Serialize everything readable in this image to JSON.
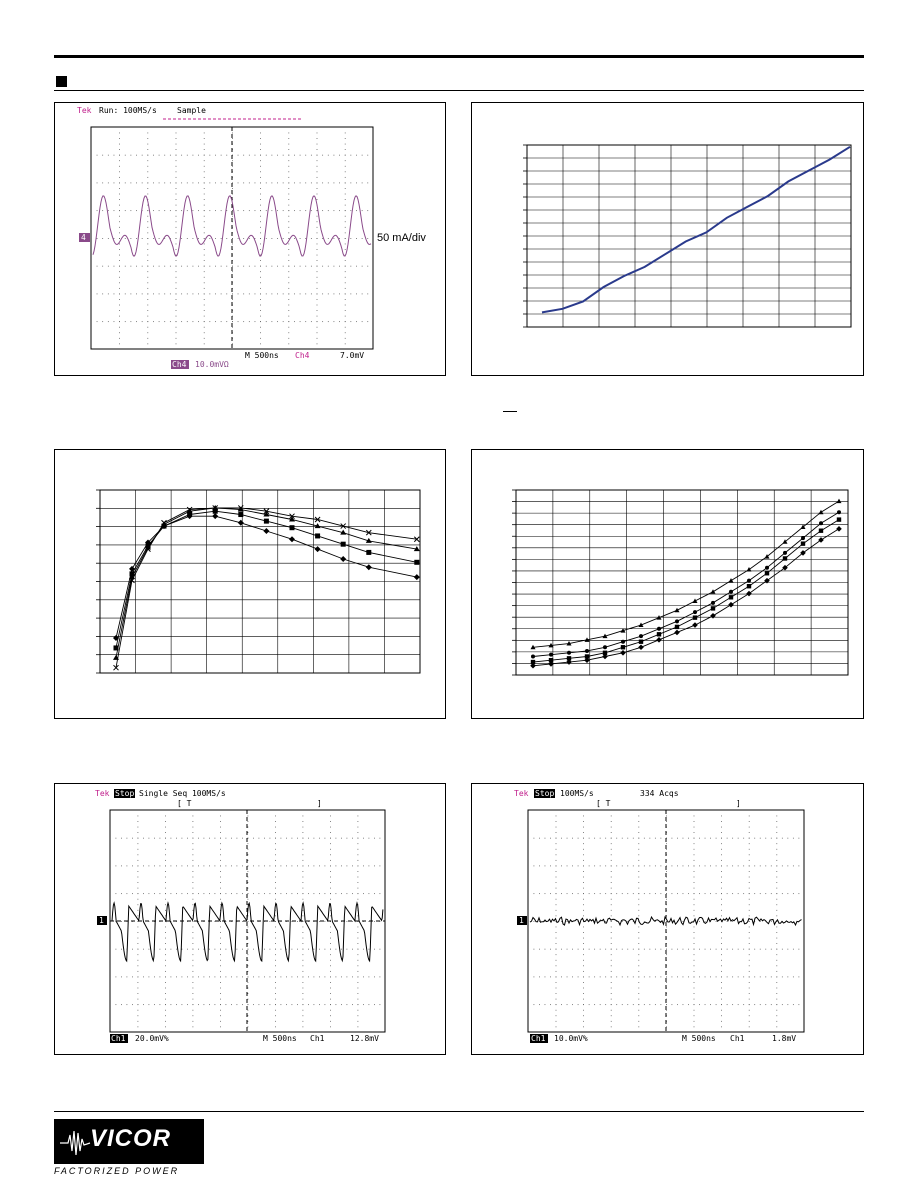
{
  "panels": {
    "p1": {
      "brand": "Tek",
      "status": "Run: 100MS/s",
      "mode": "Sample",
      "annotation": "50 mA/div",
      "ch_marker": "4",
      "timebase": "M 500ns",
      "trig_ch": "Ch4",
      "trig_level": "7.0mV",
      "scale_label": "Ch4",
      "scale_value": "10.0mVΩ"
    },
    "p5": {
      "brand": "Tek",
      "status": "Stop",
      "mode": "Single Seq 100MS/s",
      "scale_label": "Ch1",
      "scale_value": "20.0mV%",
      "timebase": "M 500ns",
      "trig_ch": "Ch1",
      "trig_level": "12.8mV",
      "ch_marker": "1"
    },
    "p6": {
      "brand": "Tek",
      "status": "Stop",
      "mode": "100MS/s",
      "acqs": "334 Acqs",
      "scale_label": "Ch1",
      "scale_value": "10.0mV%",
      "timebase": "M 500ns",
      "trig_ch": "Ch1",
      "trig_level": "1.8mV",
      "ch_marker": "1"
    }
  },
  "logo": {
    "name": "VICOR",
    "tagline": "FACTORIZED POWER"
  },
  "colors": {
    "tek_magenta": "#c0208c",
    "trace_purple": "#8a4a8a",
    "curve_blue": "#2a3a8c"
  },
  "chart_data": [
    {
      "type": "line",
      "series": [
        {
          "values": [
            0.08,
            0.1,
            0.14,
            0.22,
            0.28,
            0.33,
            0.4,
            0.47,
            0.52,
            0.6,
            0.66,
            0.72,
            0.8,
            0.86,
            0.92,
            0.99
          ]
        }
      ]
    },
    {
      "type": "line",
      "series": [
        {
          "values": [
            0.02,
            0.55,
            0.74,
            0.9,
            0.98,
            0.99,
            0.99,
            0.97,
            0.94,
            0.92,
            0.88,
            0.84,
            0.8
          ]
        },
        {
          "values": [
            0.08,
            0.57,
            0.75,
            0.89,
            0.97,
            0.99,
            0.98,
            0.95,
            0.92,
            0.88,
            0.84,
            0.79,
            0.74
          ]
        },
        {
          "values": [
            0.14,
            0.59,
            0.76,
            0.88,
            0.95,
            0.97,
            0.95,
            0.91,
            0.87,
            0.82,
            0.77,
            0.72,
            0.66
          ]
        },
        {
          "values": [
            0.2,
            0.62,
            0.78,
            0.88,
            0.94,
            0.94,
            0.9,
            0.85,
            0.8,
            0.74,
            0.68,
            0.63,
            0.57
          ]
        }
      ]
    },
    {
      "type": "line",
      "series": [
        {
          "values": [
            0.15,
            0.16,
            0.17,
            0.19,
            0.21,
            0.24,
            0.27,
            0.31,
            0.35,
            0.4,
            0.45,
            0.51,
            0.57,
            0.64,
            0.72,
            0.8,
            0.88,
            0.94
          ]
        },
        {
          "values": [
            0.1,
            0.11,
            0.12,
            0.13,
            0.15,
            0.18,
            0.21,
            0.25,
            0.29,
            0.34,
            0.39,
            0.45,
            0.51,
            0.58,
            0.66,
            0.74,
            0.82,
            0.88
          ]
        },
        {
          "values": [
            0.07,
            0.08,
            0.09,
            0.1,
            0.12,
            0.15,
            0.18,
            0.22,
            0.26,
            0.31,
            0.36,
            0.42,
            0.48,
            0.55,
            0.63,
            0.71,
            0.78,
            0.84
          ]
        },
        {
          "values": [
            0.05,
            0.06,
            0.07,
            0.08,
            0.1,
            0.12,
            0.15,
            0.19,
            0.23,
            0.27,
            0.32,
            0.38,
            0.44,
            0.51,
            0.58,
            0.66,
            0.73,
            0.79
          ]
        }
      ]
    }
  ]
}
